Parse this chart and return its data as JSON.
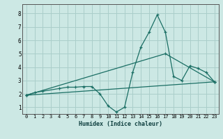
{
  "xlabel": "Humidex (Indice chaleur)",
  "bg_color": "#cce8e4",
  "grid_color": "#aaceca",
  "line_color": "#1a6e64",
  "xlim": [
    -0.5,
    23.5
  ],
  "ylim": [
    0.5,
    8.7
  ],
  "xticks": [
    0,
    1,
    2,
    3,
    4,
    5,
    6,
    7,
    8,
    9,
    10,
    11,
    12,
    13,
    14,
    15,
    16,
    17,
    18,
    19,
    20,
    21,
    22,
    23
  ],
  "yticks": [
    1,
    2,
    3,
    4,
    5,
    6,
    7,
    8
  ],
  "line1_x": [
    0,
    1,
    2,
    4,
    5,
    6,
    7,
    8,
    9,
    10,
    11,
    12,
    13,
    14,
    15,
    16,
    17,
    18,
    19,
    20,
    21,
    22,
    23
  ],
  "line1_y": [
    1.9,
    2.1,
    2.2,
    2.4,
    2.5,
    2.5,
    2.55,
    2.55,
    2.0,
    1.1,
    0.65,
    1.0,
    3.6,
    5.5,
    6.6,
    7.9,
    6.6,
    3.3,
    3.0,
    4.1,
    3.9,
    3.6,
    2.9
  ],
  "line2_x": [
    0,
    23
  ],
  "line2_y": [
    1.9,
    2.9
  ],
  "line3_x": [
    0,
    17,
    23
  ],
  "line3_y": [
    1.9,
    5.0,
    2.9
  ],
  "tick_fontsize": 5.0,
  "xlabel_fontsize": 6.0
}
